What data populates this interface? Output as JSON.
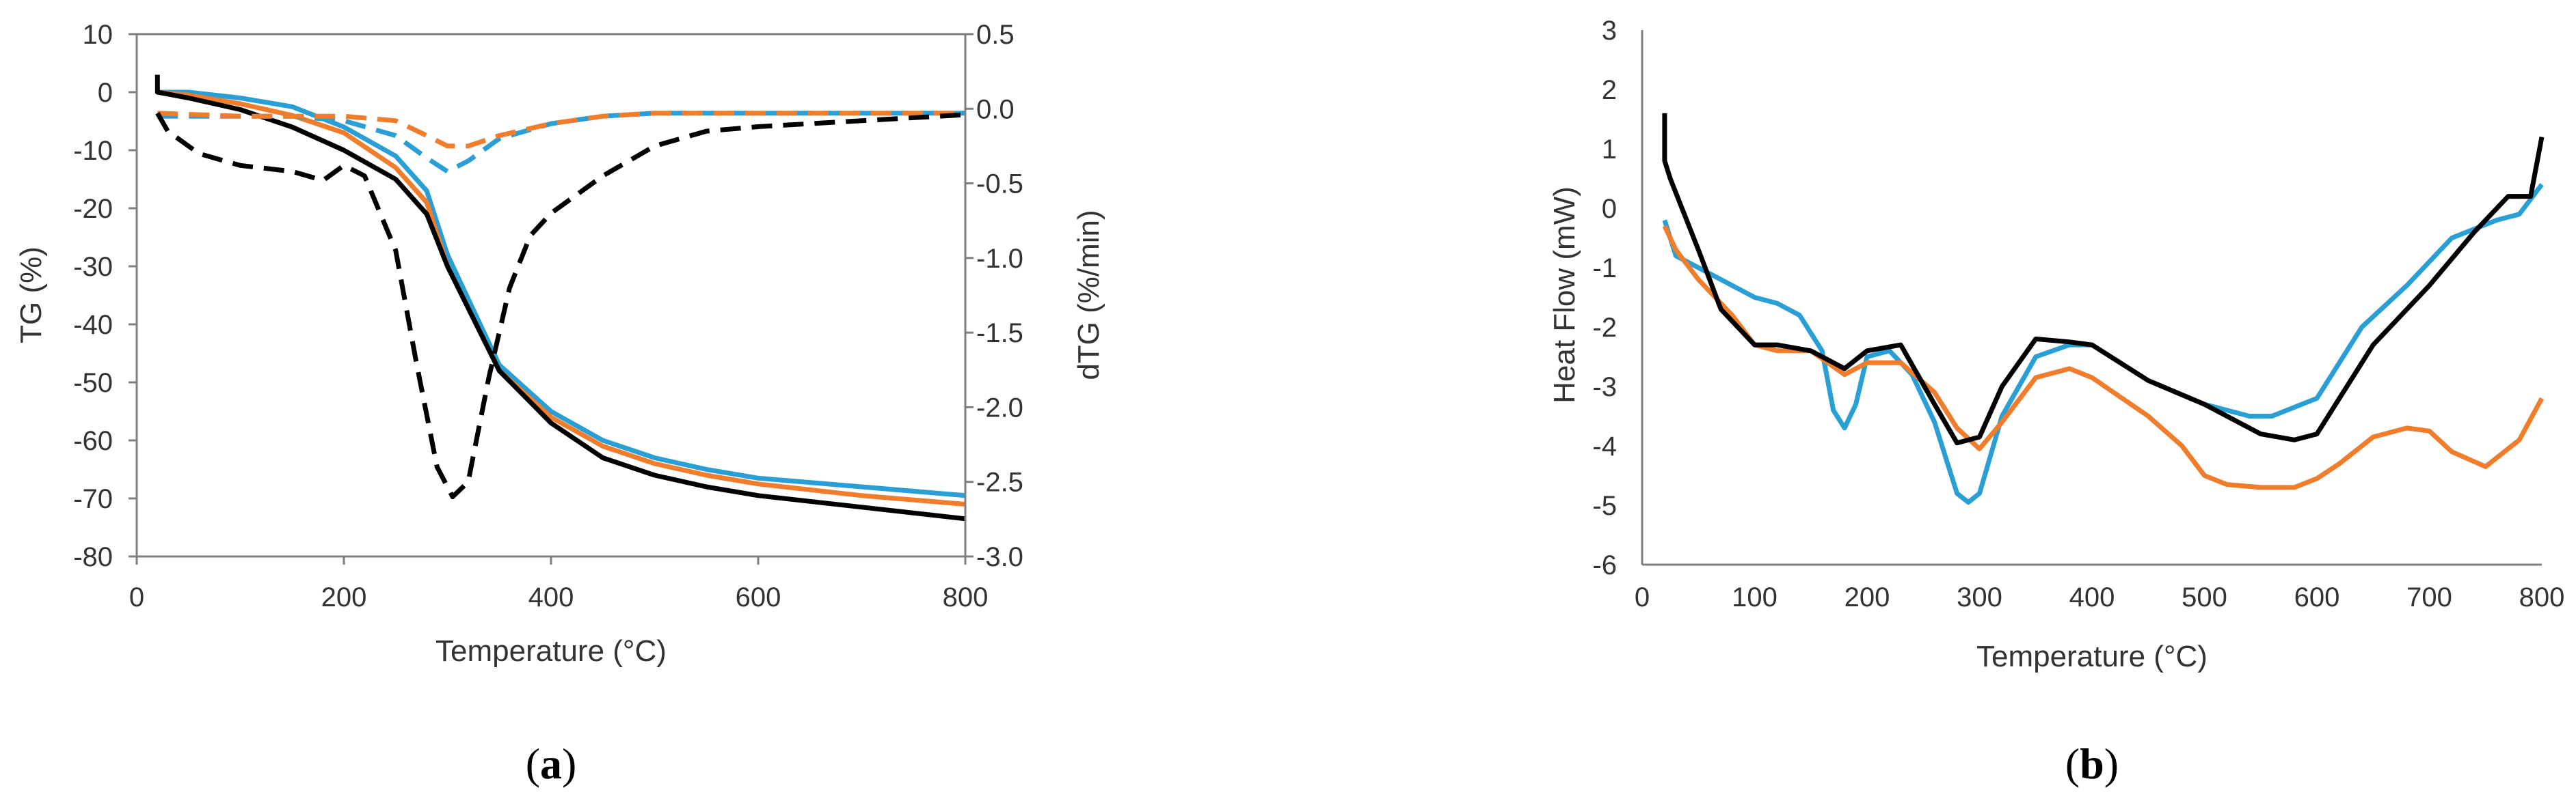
{
  "colors": {
    "blue": "#2a9fd6",
    "orange": "#f07d2c",
    "black": "#000000",
    "axis": "#7f7f7f",
    "text": "#333333"
  },
  "captions": [
    "a",
    "b"
  ],
  "chart_data": [
    {
      "type": "line",
      "panel": "a",
      "xlabel": "Temperature (°C)",
      "ylabel": "TG (%)",
      "y2label": "dTG (%/min)",
      "xlim": [
        0,
        800
      ],
      "ylim": [
        -80,
        10
      ],
      "y2lim": [
        -3.0,
        0.5
      ],
      "xticks": [
        "0",
        "200",
        "400",
        "600",
        "800"
      ],
      "yticks": [
        "10",
        "0",
        "-10",
        "-20",
        "-30",
        "-40",
        "-50",
        "-60",
        "-70",
        "-80"
      ],
      "y2ticks": [
        "0.5",
        "0.0",
        "-0.5",
        "-1.0",
        "-1.5",
        "-2.0",
        "-2.5",
        "-3.0"
      ],
      "grid": false,
      "series": [
        {
          "color": "#2a9fd6",
          "style": "solid",
          "axis": "y",
          "x": [
            20,
            50,
            100,
            150,
            200,
            250,
            280,
            300,
            350,
            400,
            450,
            500,
            550,
            600,
            700,
            800
          ],
          "y": [
            0,
            0,
            -1,
            -2.5,
            -6,
            -11,
            -17,
            -28,
            -47,
            -55,
            -60,
            -63,
            -65,
            -66.5,
            -68,
            -69.5
          ]
        },
        {
          "color": "#f07d2c",
          "style": "solid",
          "axis": "y",
          "x": [
            20,
            50,
            100,
            150,
            200,
            250,
            280,
            300,
            350,
            400,
            450,
            500,
            550,
            600,
            700,
            800
          ],
          "y": [
            0,
            -0.5,
            -2,
            -4,
            -7,
            -13,
            -19,
            -30,
            -48,
            -56,
            -61,
            -64,
            -66,
            -67.5,
            -69.5,
            -71
          ]
        },
        {
          "color": "#000000",
          "style": "solid",
          "axis": "y",
          "x": [
            20,
            20,
            50,
            100,
            150,
            200,
            250,
            280,
            300,
            350,
            400,
            450,
            500,
            550,
            600,
            700,
            800
          ],
          "y": [
            3,
            0,
            -1,
            -3,
            -6,
            -10,
            -15,
            -21,
            -30,
            -48,
            -57,
            -63,
            -66,
            -68,
            -69.5,
            -71.5,
            -73.5
          ]
        },
        {
          "color": "#2a9fd6",
          "style": "dashed",
          "axis": "y2",
          "x": [
            20,
            100,
            150,
            200,
            250,
            280,
            300,
            320,
            350,
            400,
            450,
            500,
            600,
            700,
            800
          ],
          "y": [
            -0.05,
            -0.05,
            -0.05,
            -0.08,
            -0.18,
            -0.33,
            -0.42,
            -0.35,
            -0.2,
            -0.1,
            -0.05,
            -0.03,
            -0.03,
            -0.03,
            -0.03
          ]
        },
        {
          "color": "#f07d2c",
          "style": "dashed",
          "axis": "y2",
          "x": [
            20,
            100,
            150,
            200,
            250,
            280,
            300,
            320,
            350,
            400,
            450,
            500,
            600,
            700,
            800
          ],
          "y": [
            -0.03,
            -0.05,
            -0.05,
            -0.05,
            -0.08,
            -0.18,
            -0.25,
            -0.25,
            -0.18,
            -0.1,
            -0.05,
            -0.03,
            -0.03,
            -0.03,
            -0.03
          ]
        },
        {
          "color": "#000000",
          "style": "dashed",
          "axis": "y2",
          "x": [
            20,
            30,
            60,
            100,
            150,
            180,
            200,
            220,
            250,
            270,
            290,
            305,
            320,
            340,
            360,
            380,
            400,
            450,
            500,
            550,
            600,
            700,
            800
          ],
          "y": [
            -0.03,
            -0.15,
            -0.3,
            -0.38,
            -0.42,
            -0.48,
            -0.38,
            -0.45,
            -0.95,
            -1.7,
            -2.4,
            -2.6,
            -2.5,
            -1.8,
            -1.2,
            -0.85,
            -0.7,
            -0.45,
            -0.25,
            -0.15,
            -0.12,
            -0.08,
            -0.04
          ]
        }
      ]
    },
    {
      "type": "line",
      "panel": "b",
      "xlabel": "Temperature (°C)",
      "ylabel": "Heat Flow (mW)",
      "xlim": [
        0,
        800
      ],
      "ylim": [
        -6,
        3
      ],
      "xticks": [
        "0",
        "100",
        "200",
        "300",
        "400",
        "500",
        "600",
        "700",
        "800"
      ],
      "yticks": [
        "3",
        "2",
        "1",
        "0",
        "-1",
        "-2",
        "-3",
        "-4",
        "-5",
        "-6"
      ],
      "grid": false,
      "series": [
        {
          "color": "#2a9fd6",
          "style": "solid",
          "x": [
            20,
            30,
            50,
            70,
            100,
            120,
            140,
            160,
            170,
            180,
            190,
            200,
            220,
            240,
            260,
            280,
            290,
            300,
            320,
            350,
            380,
            400,
            450,
            500,
            540,
            560,
            600,
            640,
            680,
            720,
            760,
            780,
            800
          ],
          "y": [
            -0.2,
            -0.8,
            -1.0,
            -1.2,
            -1.5,
            -1.6,
            -1.8,
            -2.4,
            -3.4,
            -3.7,
            -3.3,
            -2.5,
            -2.4,
            -2.8,
            -3.6,
            -4.8,
            -4.95,
            -4.8,
            -3.5,
            -2.5,
            -2.3,
            -2.3,
            -2.9,
            -3.3,
            -3.5,
            -3.5,
            -3.2,
            -2.0,
            -1.3,
            -0.5,
            -0.2,
            -0.1,
            0.4
          ]
        },
        {
          "color": "#f07d2c",
          "style": "solid",
          "x": [
            20,
            30,
            50,
            80,
            100,
            120,
            150,
            180,
            200,
            230,
            260,
            280,
            300,
            320,
            350,
            380,
            400,
            450,
            480,
            500,
            520,
            550,
            580,
            600,
            620,
            650,
            680,
            700,
            720,
            750,
            780,
            800
          ],
          "y": [
            -0.3,
            -0.7,
            -1.2,
            -1.8,
            -2.3,
            -2.4,
            -2.4,
            -2.8,
            -2.6,
            -2.6,
            -3.1,
            -3.7,
            -4.05,
            -3.6,
            -2.85,
            -2.7,
            -2.85,
            -3.5,
            -4.0,
            -4.5,
            -4.65,
            -4.7,
            -4.7,
            -4.55,
            -4.3,
            -3.85,
            -3.7,
            -3.75,
            -4.1,
            -4.35,
            -3.9,
            -3.2
          ]
        },
        {
          "color": "#000000",
          "style": "solid",
          "x": [
            20,
            20,
            25,
            50,
            70,
            100,
            120,
            150,
            180,
            200,
            230,
            260,
            280,
            300,
            320,
            350,
            380,
            400,
            450,
            500,
            550,
            580,
            600,
            620,
            650,
            700,
            740,
            770,
            790,
            800
          ],
          "y": [
            1.6,
            0.8,
            0.5,
            -0.7,
            -1.7,
            -2.3,
            -2.3,
            -2.4,
            -2.7,
            -2.4,
            -2.3,
            -3.3,
            -3.95,
            -3.85,
            -3.0,
            -2.2,
            -2.25,
            -2.3,
            -2.9,
            -3.3,
            -3.8,
            -3.9,
            -3.8,
            -3.2,
            -2.3,
            -1.3,
            -0.4,
            0.2,
            0.2,
            1.2
          ]
        }
      ]
    }
  ]
}
